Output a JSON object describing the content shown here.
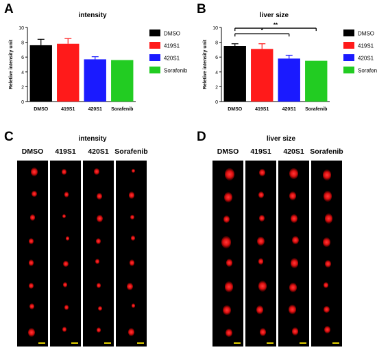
{
  "panels": {
    "A": {
      "letter": "A",
      "title": "intensity"
    },
    "B": {
      "letter": "B",
      "title": "liver size"
    },
    "C": {
      "letter": "C",
      "title": "intensity"
    },
    "D": {
      "letter": "D",
      "title": "liver size"
    }
  },
  "lanes": [
    "DMSO",
    "419S1",
    "420S1",
    "Sorafenib"
  ],
  "colors": {
    "DMSO": "#000000",
    "419S1": "#ff1a1a",
    "420S1": "#1a1aff",
    "Sorafenib": "#22cc22",
    "scalebar": "#e6d400"
  },
  "chart_data": [
    {
      "type": "bar",
      "title": "intensity",
      "ylabel": "Reletive intensity unit",
      "categories": [
        "DMSO",
        "419S1",
        "420S1",
        "Sorafenib"
      ],
      "values": [
        7.6,
        7.8,
        5.7,
        5.6
      ],
      "errors": [
        0.8,
        0.7,
        0.35,
        0
      ],
      "ylim": [
        0,
        10
      ],
      "yticks": [
        "0",
        "2",
        "4",
        "6",
        "8",
        "10"
      ],
      "legend": [
        "DMSO",
        "419S1",
        "420S1",
        "Sorafenib"
      ],
      "legend_position": "right"
    },
    {
      "type": "bar",
      "title": "liver size",
      "ylabel": "Reletive intensity unit",
      "categories": [
        "DMSO",
        "419S1",
        "420S1",
        "Sorafenib"
      ],
      "values": [
        7.5,
        7.1,
        5.8,
        5.5
      ],
      "errors": [
        0.3,
        0.7,
        0.45,
        0
      ],
      "ylim": [
        0,
        10
      ],
      "yticks": [
        "0",
        "2",
        "4",
        "6",
        "8",
        "10"
      ],
      "legend": [
        "DMSO",
        "419S1",
        "420S1",
        "Sorafenib"
      ],
      "legend_position": "right",
      "significance": [
        {
          "from": "DMSO",
          "to": "Sorafenib",
          "label": "**"
        },
        {
          "from": "DMSO",
          "to": "420S1",
          "label": "*"
        }
      ]
    }
  ]
}
